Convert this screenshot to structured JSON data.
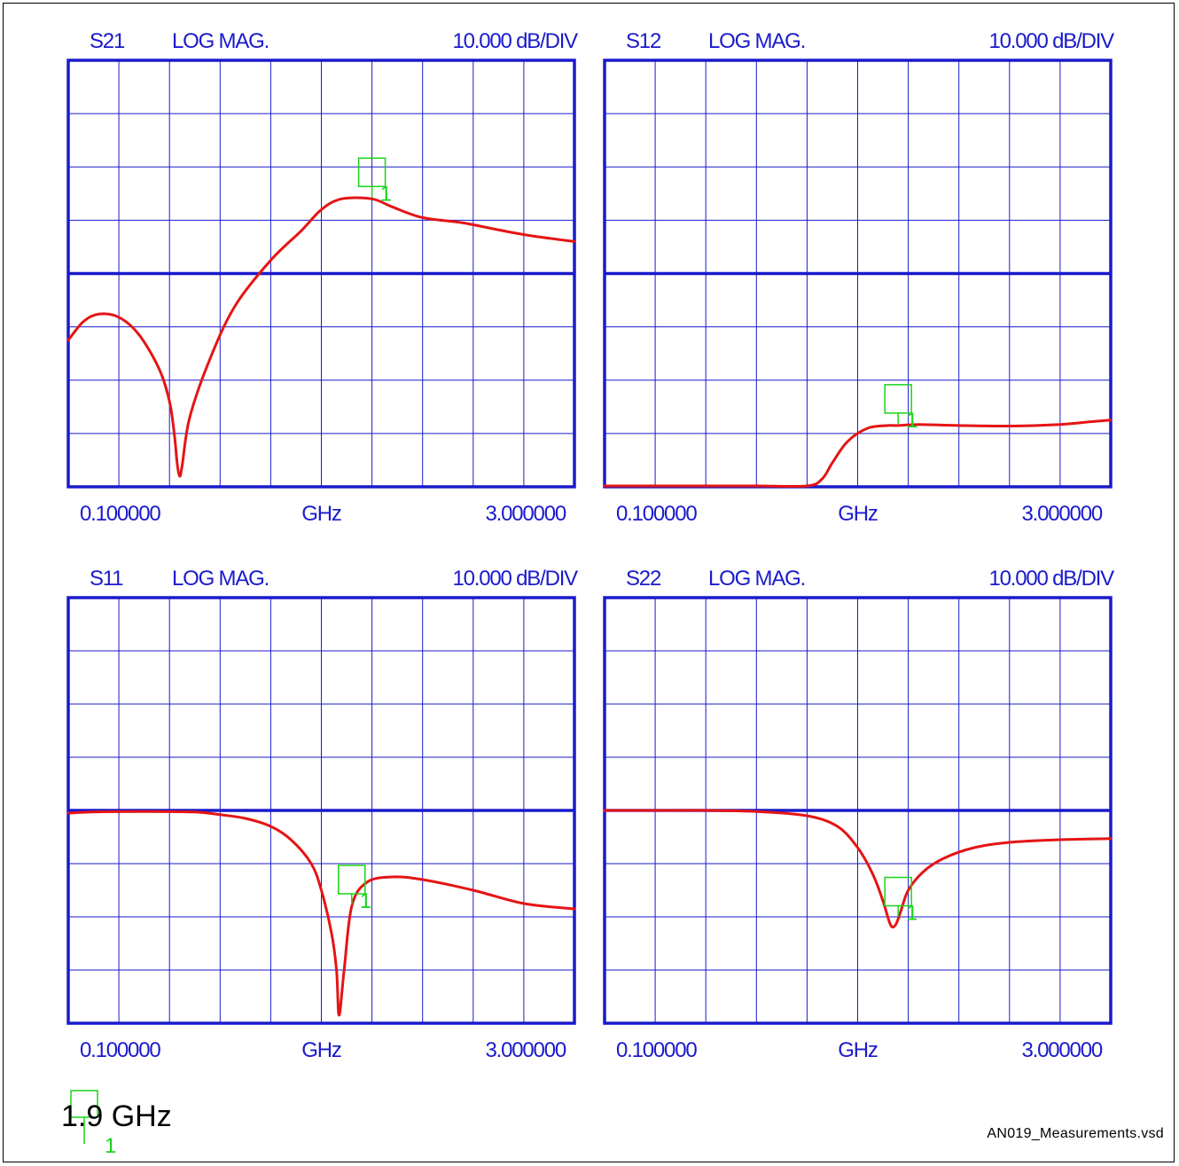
{
  "colors": {
    "grid": "#1a1acc",
    "frame": "#1a1acc",
    "trace": "#e51414",
    "marker": "#1ad41a",
    "label": "#1a1acc"
  },
  "chart_data": [
    {
      "type": "line",
      "parameter": "S21",
      "format": "LOG MAG.",
      "scale": "10.000 dB/DIV",
      "x_start": "0.100000",
      "x_unit": "GHz",
      "x_stop": "3.000000",
      "divisions": {
        "x": 10,
        "y": 8
      },
      "y_unit": "dB",
      "reference_division": 4,
      "x_range_ghz": [
        0.1,
        3.0
      ],
      "marker": {
        "label": "1",
        "x_ghz": 1.9,
        "x_div": 6.0
      },
      "series": [
        {
          "x_div": [
            0,
            0.3,
            0.6,
            1.0,
            1.4,
            1.8,
            2.0,
            2.1,
            2.15,
            2.2,
            2.25,
            2.4,
            2.8,
            3.3,
            4.0,
            4.6,
            5.0,
            5.4,
            6.0,
            6.4,
            7.0,
            7.8,
            8.6,
            9.2,
            10.0
          ],
          "y_db": [
            -12.5,
            -9.0,
            -7.6,
            -8.2,
            -11.5,
            -18.0,
            -24.0,
            -30.5,
            -35.5,
            -38.0,
            -36.0,
            -27.0,
            -16.0,
            -6.0,
            2.5,
            8.0,
            12.0,
            14.0,
            14.0,
            12.5,
            10.5,
            9.5,
            8.0,
            7.0,
            6.0
          ]
        }
      ]
    },
    {
      "type": "line",
      "parameter": "S12",
      "format": "LOG MAG.",
      "scale": "10.000 dB/DIV",
      "x_start": "0.100000",
      "x_unit": "GHz",
      "x_stop": "3.000000",
      "divisions": {
        "x": 10,
        "y": 8
      },
      "y_unit": "dB",
      "reference_division": 4,
      "x_range_ghz": [
        0.1,
        3.0
      ],
      "marker": {
        "label": "1",
        "x_ghz": 1.9,
        "x_div": 5.8
      },
      "series": [
        {
          "x_div": [
            0,
            1.0,
            2.0,
            3.0,
            4.0,
            4.3,
            4.5,
            4.8,
            5.2,
            5.6,
            5.8,
            6.2,
            7.0,
            8.0,
            9.0,
            9.6,
            10.0
          ],
          "y_db": [
            -40.0,
            -40.0,
            -40.0,
            -40.0,
            -40.0,
            -38.5,
            -35.5,
            -31.5,
            -29.0,
            -28.5,
            -28.5,
            -28.3,
            -28.5,
            -28.6,
            -28.3,
            -27.8,
            -27.5
          ]
        }
      ]
    },
    {
      "type": "line",
      "parameter": "S11",
      "format": "LOG MAG.",
      "scale": "10.000 dB/DIV",
      "x_start": "0.100000",
      "x_unit": "GHz",
      "x_stop": "3.000000",
      "divisions": {
        "x": 10,
        "y": 8
      },
      "y_unit": "dB",
      "reference_division": 4,
      "x_range_ghz": [
        0.1,
        3.0
      ],
      "marker": {
        "label": "1",
        "x_ghz": 1.9,
        "x_div": 5.6
      },
      "series": [
        {
          "x_div": [
            0,
            0.5,
            1.5,
            2.5,
            3.0,
            3.5,
            4.0,
            4.4,
            4.8,
            5.0,
            5.2,
            5.3,
            5.35,
            5.45,
            5.6,
            5.9,
            6.4,
            7.0,
            8.0,
            9.0,
            10.0
          ],
          "y_db": [
            -0.5,
            -0.3,
            -0.2,
            -0.3,
            -0.8,
            -1.5,
            -3.0,
            -5.5,
            -10.0,
            -15.0,
            -23.0,
            -30.0,
            -38.5,
            -30.0,
            -18.0,
            -13.5,
            -12.5,
            -13.0,
            -15.0,
            -17.5,
            -18.5
          ]
        }
      ]
    },
    {
      "type": "line",
      "parameter": "S22",
      "format": "LOG MAG.",
      "scale": "10.000 dB/DIV",
      "x_start": "0.100000",
      "x_unit": "GHz",
      "x_stop": "3.000000",
      "divisions": {
        "x": 10,
        "y": 8
      },
      "y_unit": "dB",
      "reference_division": 4,
      "x_range_ghz": [
        0.1,
        3.0
      ],
      "marker": {
        "label": "1",
        "x_ghz": 1.9,
        "x_div": 5.8
      },
      "series": [
        {
          "x_div": [
            0,
            1.0,
            2.0,
            3.0,
            4.0,
            4.6,
            5.0,
            5.3,
            5.5,
            5.65,
            5.75,
            5.85,
            6.0,
            6.3,
            6.7,
            7.3,
            8.0,
            9.0,
            10.0
          ],
          "y_db": [
            0.0,
            0.0,
            0.0,
            -0.2,
            -1.0,
            -3.0,
            -7.0,
            -12.0,
            -17.0,
            -21.5,
            -21.5,
            -19.0,
            -15.0,
            -11.5,
            -9.0,
            -7.0,
            -6.0,
            -5.5,
            -5.3
          ]
        }
      ]
    }
  ],
  "legend": {
    "marker_label": "1",
    "text": "1.9 GHz"
  },
  "footer": {
    "filename": "AN019_Measurements.vsd"
  }
}
